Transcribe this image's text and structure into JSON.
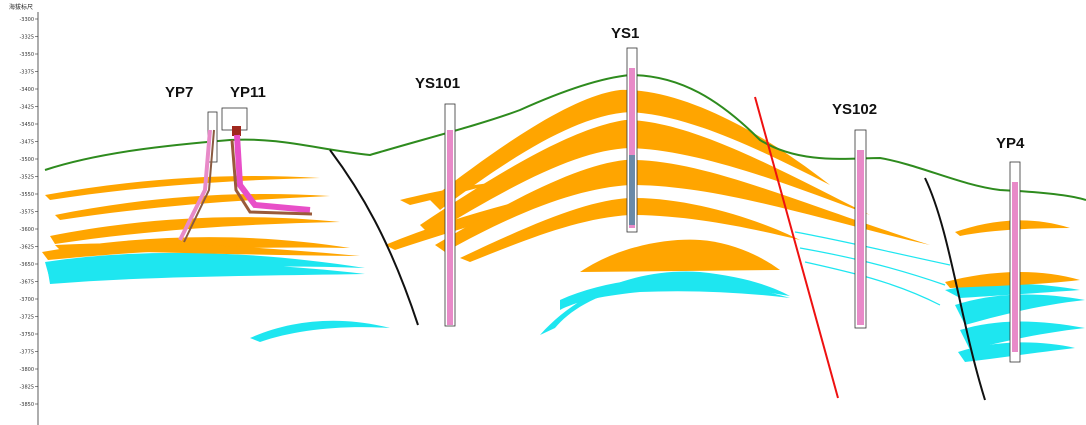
{
  "axis": {
    "title": "海拔标尺",
    "ticks": [
      "-3300",
      "-3325",
      "-3350",
      "-3375",
      "-3400",
      "-3425",
      "-3450",
      "-3475",
      "-3500",
      "-3525",
      "-3550",
      "-3575",
      "-3600",
      "-3625",
      "-3650",
      "-3675",
      "-3700",
      "-3725",
      "-3750",
      "-3775",
      "-3800",
      "-3825",
      "-3850"
    ]
  },
  "wells": [
    {
      "name": "YP7"
    },
    {
      "name": "YP11"
    },
    {
      "name": "YS101"
    },
    {
      "name": "YS1"
    },
    {
      "name": "YS102"
    },
    {
      "name": "YP4"
    }
  ],
  "colors": {
    "surface": "#2e8b1e",
    "sand_layer": "#ffa500",
    "water_layer": "#1ee6f0",
    "fault_black": "#111111",
    "fault_red": "#ee1111",
    "well_pink": "#e88ac8"
  }
}
